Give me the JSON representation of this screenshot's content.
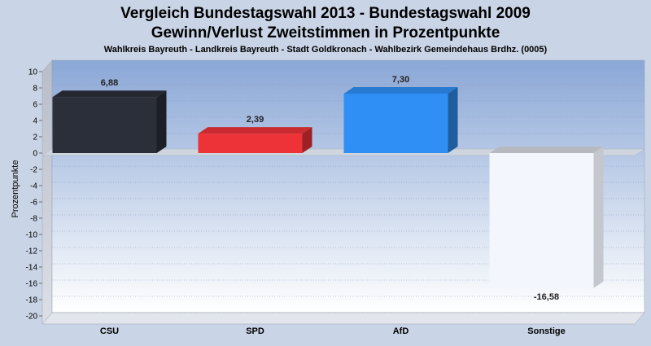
{
  "colors": {
    "background": "#c9d4e6",
    "plot_top": "#8aa7d6",
    "plot_bottom": "#ffffff",
    "CSU": "#2b2f3a",
    "SPD": "#ee3338",
    "AfD": "#2f8ff5",
    "Sonstige": "#f3f6fc"
  },
  "chart_data": {
    "type": "bar",
    "title": "Vergleich Bundestagswahl 2013 - Bundestagswahl 2009",
    "subtitle": "Gewinn/Verlust Zweitstimmen in Prozentpunkte",
    "subtitle2": "Wahlkreis Bayreuth - Landkreis Bayreuth - Stadt Goldkronach - Wahlbezirk Gemeindehaus Brdhz. (0005)",
    "xlabel": "",
    "ylabel": "Prozentpunkte",
    "ylim": [
      -20,
      10
    ],
    "yticks": [
      "10",
      "8",
      "6",
      "4",
      "2",
      "0",
      "-2",
      "-4",
      "-6",
      "-8",
      "-10",
      "-12",
      "-14",
      "-16",
      "-18",
      "-20"
    ],
    "categories": [
      "CSU",
      "SPD",
      "AfD",
      "Sonstige"
    ],
    "values": [
      6.88,
      2.39,
      7.3,
      -16.58
    ],
    "value_labels": [
      "6,88",
      "2,39",
      "7,30",
      "-16,58"
    ],
    "grid": true,
    "legend": "none"
  }
}
